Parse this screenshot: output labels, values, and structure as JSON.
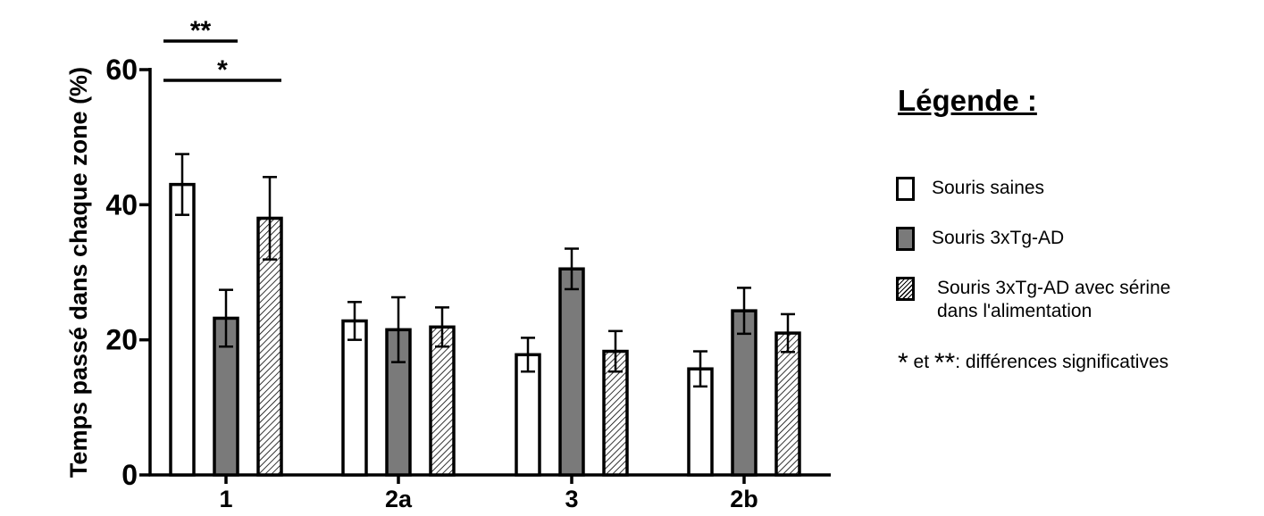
{
  "chart_data": {
    "type": "bar",
    "categories": [
      "1",
      "2a",
      "3",
      "2b"
    ],
    "ylabel": "Temps passé dans chaque zone (%)",
    "ylim": [
      0,
      60
    ],
    "yticks": [
      "0",
      "20",
      "40",
      "60"
    ],
    "series": [
      {
        "name": "Souris saines",
        "values": [
          43,
          22.8,
          17.8,
          15.7
        ],
        "errors": [
          4.5,
          2.8,
          2.5,
          2.6
        ],
        "pattern": "white"
      },
      {
        "name": "Souris 3xTg-AD",
        "values": [
          23.2,
          21.5,
          30.5,
          24.3
        ],
        "errors": [
          4.2,
          4.8,
          3.0,
          3.4
        ],
        "pattern": "gray"
      },
      {
        "name": "Souris 3xTg-AD avec sérine dans l'alimentation",
        "values": [
          38,
          21.9,
          18.3,
          21
        ],
        "errors": [
          6.1,
          2.9,
          3.0,
          2.8
        ],
        "pattern": "hatch"
      }
    ],
    "significance": [
      {
        "label": "**",
        "category": "1",
        "from_series": 0,
        "to_series": 1
      },
      {
        "label": "*",
        "category": "1",
        "from_series": 0,
        "to_series": 2
      }
    ],
    "colors": {
      "white": "#ffffff",
      "gray": "#7a7a7a",
      "outline": "#000000"
    }
  },
  "legend": {
    "title": "Légende :",
    "items": [
      {
        "line1": "Souris saines",
        "line2": "",
        "pattern": "white"
      },
      {
        "line1": "Souris 3xTg-AD",
        "line2": "",
        "pattern": "gray"
      },
      {
        "line1": "Souris 3xTg-AD avec sérine",
        "line2": "dans l'alimentation",
        "pattern": "hatch"
      }
    ],
    "note_star1": "*",
    "note_et": " et ",
    "note_star2": "**",
    "note_text": ": différences significatives"
  }
}
